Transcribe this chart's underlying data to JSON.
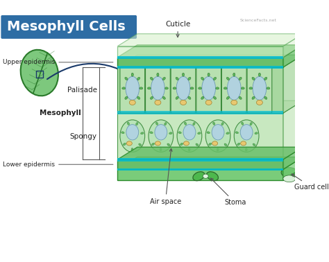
{
  "title": "Mesophyll Cells",
  "title_color": "#ffffff",
  "bg_color": "#ffffff",
  "labels": {
    "cuticle": "Cuticle",
    "upper_epidermis": "Upper epidermis",
    "palisade": "Palisade",
    "mesophyll": "Mesophyll",
    "spongy": "Spongy",
    "lower_epidermis": "Lower epidermis",
    "air_space": "Air space",
    "stoma": "Stoma",
    "guard_cell": "Guard cell"
  },
  "title_bg": "#2e6da4",
  "colors": {
    "cuticle_fill": "#d4f0c8",
    "cuticle_edge": "#5aaa5a",
    "epidermis_fill": "#6abf6a",
    "epidermis_edge": "#2a8a2a",
    "palisade_bg": "#a8d8a0",
    "palisade_edge": "#3a8a3a",
    "palisade_cell_fill": "#b8e0b0",
    "spongy_bg": "#c8e8c0",
    "spongy_edge": "#4a9a4a",
    "spongy_cell_fill": "#b8e4b8",
    "spongy_cell_edge": "#3a8a3a",
    "chloroplast_fill": "#5ab85a",
    "chloroplast_edge": "#2a6a2a",
    "vacuole_fill": "#b0d0e8",
    "vacuole_edge": "#6090b0",
    "nucleus_fill": "#e8c870",
    "nucleus_edge": "#a08030",
    "cyan_layer": "#00bcd4",
    "leaf_fill": "#7dc87d",
    "leaf_edge": "#2a7a2a",
    "arrow_color": "#1a3a6a",
    "bracket_color": "#555555",
    "label_color": "#222222",
    "guard_cell_fill": "#4db84d",
    "guard_cell_edge": "#2a6a2a",
    "base_fill": "#7acc7a",
    "base_edge": "#2a8a2a"
  }
}
